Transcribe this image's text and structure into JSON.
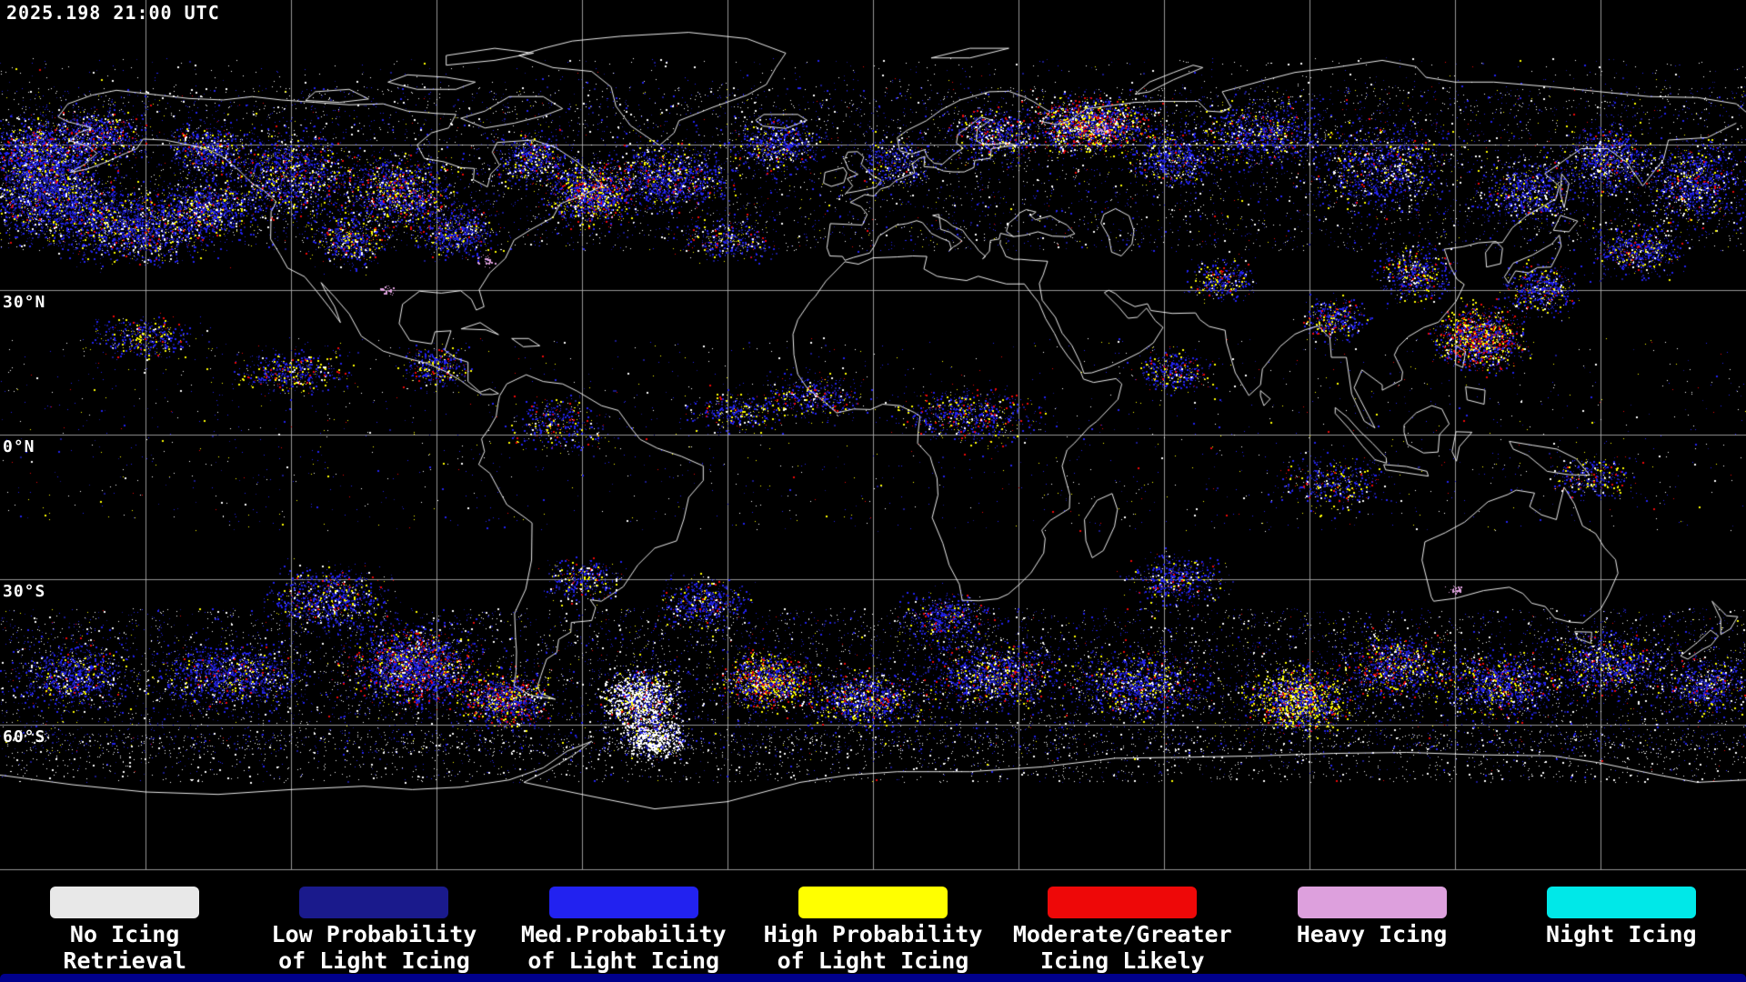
{
  "header": {
    "timestamp": "2025.198 21:00 UTC"
  },
  "map": {
    "projection": "equirectangular",
    "background": "#000000",
    "coastline_color": "#ffffff",
    "grid": {
      "lon_interval_deg": 30,
      "lat_interval_deg": 30,
      "color": "#b0b0b0"
    },
    "latitude_labels": [
      {
        "key": "30n",
        "label": "30°N",
        "lat": 30
      },
      {
        "key": "0n",
        "label": "0°N",
        "lat": 0
      },
      {
        "key": "30s",
        "label": "30°S",
        "lat": -30
      },
      {
        "key": "60s",
        "label": "60°S",
        "lat": -60
      }
    ]
  },
  "legend": {
    "text_color": "#ffffff",
    "items": [
      {
        "key": "no-icing-retrieval",
        "color": "#e8e8e8",
        "label_lines": [
          "No Icing",
          "Retrieval"
        ]
      },
      {
        "key": "low-prob-light-icing",
        "color": "#1a1a8c",
        "label_lines": [
          "Low Probability",
          "of Light Icing"
        ]
      },
      {
        "key": "med-prob-light-icing",
        "color": "#2222f0",
        "label_lines": [
          "Med.Probability",
          "of Light Icing"
        ]
      },
      {
        "key": "high-prob-light-icing",
        "color": "#ffff00",
        "label_lines": [
          "High Probability",
          "of Light Icing"
        ]
      },
      {
        "key": "moderate-greater-icing",
        "color": "#ee0808",
        "label_lines": [
          "Moderate/Greater",
          "Icing Likely"
        ]
      },
      {
        "key": "heavy-icing",
        "color": "#dda0dd",
        "label_lines": [
          "Heavy Icing"
        ]
      },
      {
        "key": "night-icing",
        "color": "#00e8e8",
        "label_lines": [
          "Night Icing"
        ]
      }
    ]
  },
  "footer": {
    "strip_color": "#00008b"
  }
}
